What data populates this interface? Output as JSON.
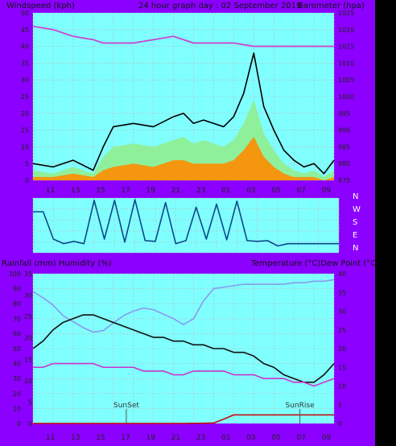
{
  "colors": {
    "background": "#8b00ff",
    "plot_bg": "#80ffff",
    "grid": "#bbbbbb",
    "left_axis_text": "#222222",
    "right_axis_text": "#ff1493",
    "gust": "#000000",
    "wind_avg": "#90ee90",
    "wind_min": "#ff8c00",
    "barometer": "#cc44cc",
    "direction": "#0a4a8a",
    "humidity": "#8a9aee",
    "temperature": "#111111",
    "dewpoint": "#cc33cc",
    "rain": "#cc0000"
  },
  "header": {
    "left": "Windspeed (kph)",
    "center": "24 hour graph day : 02 September 2019",
    "right": "Barometer (hpa)"
  },
  "mid_header": {
    "left": "Rainfall (mm)  Humidity (%)",
    "right": "Temperature (°C)Dew Point (°C)"
  },
  "compass_labels": [
    "N",
    "W",
    "S",
    "E",
    "N"
  ],
  "annotations": {
    "sunset": "SunSet",
    "sunrise": "SunRise"
  },
  "chart_data": [
    {
      "type": "line",
      "xlabel": "",
      "x_ticks": [
        "11",
        "13",
        "15",
        "17",
        "19",
        "21",
        "23",
        "01",
        "03",
        "05",
        "07",
        "09"
      ],
      "left_axis": {
        "ticks": [
          "0",
          "5",
          "10",
          "15",
          "20",
          "25",
          "30",
          "35",
          "40",
          "45",
          "50"
        ],
        "ylim": [
          0,
          50
        ]
      },
      "right_axis": {
        "ticks": [
          "975",
          "980",
          "985",
          "990",
          "995",
          "1000",
          "1005",
          "1010",
          "1015",
          "1020",
          "1025"
        ],
        "ylim": [
          975,
          1025
        ]
      },
      "series": [
        {
          "color": "#000000",
          "axis": "left",
          "type": "line",
          "x": [
            0,
            2,
            4,
            6,
            7,
            8,
            10,
            12,
            14,
            15,
            16,
            17,
            18,
            19,
            20,
            21,
            22,
            23,
            24,
            25,
            26,
            27,
            28,
            29,
            30
          ],
          "y": [
            5,
            4,
            6,
            3,
            10,
            16,
            17,
            16,
            19,
            20,
            17,
            18,
            17,
            16,
            19,
            26,
            38,
            22,
            15,
            9,
            6,
            4,
            5,
            2,
            6
          ]
        },
        {
          "color": "#90ee90",
          "axis": "left",
          "type": "area",
          "x": [
            0,
            2,
            4,
            6,
            7,
            8,
            10,
            12,
            14,
            15,
            16,
            17,
            18,
            19,
            20,
            21,
            22,
            23,
            24,
            25,
            26,
            27,
            28,
            29,
            30
          ],
          "y": [
            3,
            2,
            4,
            2,
            7,
            10,
            11,
            10,
            12,
            13,
            11,
            12,
            11,
            10,
            12,
            17,
            24,
            14,
            9,
            5,
            3,
            2,
            3,
            1,
            3
          ]
        },
        {
          "color": "#ff8c00",
          "axis": "left",
          "type": "area",
          "x": [
            0,
            2,
            4,
            6,
            7,
            8,
            10,
            12,
            14,
            15,
            16,
            17,
            18,
            19,
            20,
            21,
            22,
            23,
            24,
            25,
            26,
            27,
            28,
            29,
            30
          ],
          "y": [
            1,
            1,
            2,
            1,
            3,
            4,
            5,
            4,
            6,
            6,
            5,
            5,
            5,
            5,
            6,
            9,
            13,
            7,
            4,
            2,
            1,
            1,
            1,
            0,
            1
          ]
        },
        {
          "color": "#cc44cc",
          "axis": "right",
          "type": "line",
          "x": [
            0,
            2,
            4,
            6,
            7,
            8,
            10,
            12,
            14,
            16,
            18,
            20,
            22,
            24,
            26,
            28,
            30
          ],
          "y": [
            1021,
            1020,
            1018,
            1017,
            1016,
            1016,
            1016,
            1017,
            1018,
            1016,
            1016,
            1016,
            1015,
            1015,
            1015,
            1015,
            1015
          ]
        }
      ]
    },
    {
      "type": "line",
      "xlabel": "",
      "series": [
        {
          "color": "#0a4a8a",
          "type": "line",
          "x": [
            0,
            1,
            2,
            3,
            4,
            5,
            6,
            7,
            8,
            9,
            10,
            11,
            12,
            13,
            14,
            15,
            16,
            17,
            18,
            19,
            20,
            21,
            22,
            23,
            24,
            25,
            26,
            27,
            28,
            29,
            30
          ],
          "y": [
            270,
            270,
            90,
            60,
            75,
            60,
            345,
            90,
            345,
            70,
            350,
            80,
            75,
            330,
            60,
            80,
            300,
            90,
            320,
            85,
            340,
            80,
            75,
            80,
            45,
            60,
            60,
            60,
            60,
            60,
            60
          ]
        }
      ]
    },
    {
      "type": "line",
      "xlabel": "",
      "x_ticks": [
        "11",
        "13",
        "15",
        "17",
        "19",
        "21",
        "23",
        "01",
        "03",
        "05",
        "07",
        "09"
      ],
      "left_axis": {
        "ticks": [
          "0",
          "10",
          "20",
          "30",
          "40",
          "50",
          "60",
          "70",
          "80",
          "90",
          "100"
        ],
        "ylim": [
          0,
          100
        ]
      },
      "red_axis": {
        "ticks": [
          "0",
          "5",
          "10",
          "15",
          "20",
          "25",
          "30",
          "35"
        ],
        "ylim": [
          0,
          35
        ]
      },
      "right_axis": {
        "ticks": [
          "0",
          "5",
          "10",
          "15",
          "20",
          "25",
          "30",
          "35",
          "40"
        ],
        "ylim": [
          0,
          40
        ]
      },
      "series": [
        {
          "color": "#8a9aee",
          "axis": "left",
          "type": "line",
          "x": [
            0,
            1,
            2,
            3,
            4,
            5,
            6,
            7,
            8,
            9,
            10,
            11,
            12,
            13,
            14,
            15,
            16,
            17,
            18,
            19,
            20,
            21,
            22,
            23,
            24,
            25,
            26,
            27,
            28,
            29,
            30
          ],
          "y": [
            88,
            84,
            79,
            72,
            68,
            64,
            61,
            62,
            67,
            72,
            75,
            77,
            76,
            73,
            70,
            66,
            70,
            82,
            90,
            91,
            92,
            93,
            93,
            93,
            93,
            93,
            94,
            94,
            95,
            95,
            96
          ]
        },
        {
          "color": "#111111",
          "axis": "right",
          "type": "line",
          "x": [
            0,
            1,
            2,
            3,
            4,
            5,
            6,
            7,
            8,
            9,
            10,
            11,
            12,
            13,
            14,
            15,
            16,
            17,
            18,
            19,
            20,
            21,
            22,
            23,
            24,
            25,
            26,
            27,
            28,
            29,
            30
          ],
          "y": [
            20,
            22,
            25,
            27,
            28,
            29,
            29,
            28,
            27,
            26,
            25,
            24,
            23,
            23,
            22,
            22,
            21,
            21,
            20,
            20,
            19,
            19,
            18,
            16,
            15,
            13,
            12,
            11,
            11,
            13,
            16
          ]
        },
        {
          "color": "#cc33cc",
          "axis": "right",
          "type": "line",
          "x": [
            0,
            1,
            2,
            3,
            4,
            5,
            6,
            7,
            8,
            9,
            10,
            11,
            12,
            13,
            14,
            15,
            16,
            17,
            18,
            19,
            20,
            21,
            22,
            23,
            24,
            25,
            26,
            27,
            28,
            29,
            30
          ],
          "y": [
            15,
            15,
            16,
            16,
            16,
            16,
            16,
            15,
            15,
            15,
            15,
            14,
            14,
            14,
            13,
            13,
            14,
            14,
            14,
            14,
            13,
            13,
            13,
            12,
            12,
            12,
            11,
            11,
            10,
            11,
            12
          ]
        },
        {
          "color": "#cc0000",
          "axis": "red",
          "type": "line",
          "x": [
            0,
            5,
            10,
            15,
            18,
            19,
            20,
            21,
            25,
            30
          ],
          "y": [
            0,
            0,
            0,
            0,
            0.1,
            1,
            2,
            2,
            2,
            2
          ]
        }
      ]
    }
  ]
}
